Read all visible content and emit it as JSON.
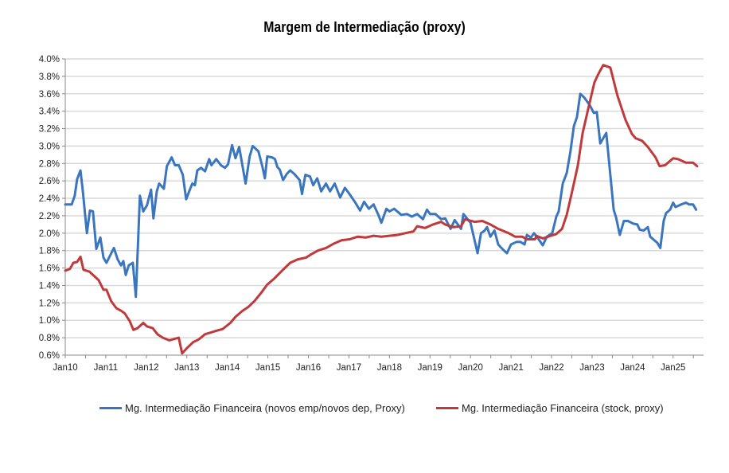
{
  "chart_data": {
    "type": "line",
    "title": "Margem de Intermediação (proxy)",
    "xlabel": "",
    "ylabel": "",
    "x_unit": "months since Jan10",
    "xlim": [
      0,
      189
    ],
    "ylim": [
      0.6,
      4.0
    ],
    "grid": true,
    "legend_position": "bottom",
    "x_ticks": [
      {
        "x": 0,
        "label": "Jan10"
      },
      {
        "x": 12,
        "label": "Jan11"
      },
      {
        "x": 24,
        "label": "Jan12"
      },
      {
        "x": 36,
        "label": "Jan13"
      },
      {
        "x": 48,
        "label": "Jan14"
      },
      {
        "x": 60,
        "label": "Jan15"
      },
      {
        "x": 72,
        "label": "Jan16"
      },
      {
        "x": 84,
        "label": "Jan17"
      },
      {
        "x": 96,
        "label": "Jan18"
      },
      {
        "x": 108,
        "label": "Jan19"
      },
      {
        "x": 120,
        "label": "Jan20"
      },
      {
        "x": 132,
        "label": "Jan21"
      },
      {
        "x": 144,
        "label": "Jan22"
      },
      {
        "x": 156,
        "label": "Jan23"
      },
      {
        "x": 168,
        "label": "Jan24"
      },
      {
        "x": 180,
        "label": "Jan25"
      }
    ],
    "y_ticks": [
      {
        "y": 4.0,
        "label": "4.0%"
      },
      {
        "y": 3.8,
        "label": "3.8%"
      },
      {
        "y": 3.6,
        "label": "3.6%"
      },
      {
        "y": 3.4,
        "label": "3.4%"
      },
      {
        "y": 3.2,
        "label": "3.2%"
      },
      {
        "y": 3.0,
        "label": "3.0%"
      },
      {
        "y": 2.8,
        "label": "2.8%"
      },
      {
        "y": 2.6,
        "label": "2.6%"
      },
      {
        "y": 2.4,
        "label": "2.4%"
      },
      {
        "y": 2.2,
        "label": "2.2%"
      },
      {
        "y": 2.0,
        "label": "2.0%"
      },
      {
        "y": 1.8,
        "label": "1.8%"
      },
      {
        "y": 1.6,
        "label": "1.6%"
      },
      {
        "y": 1.4,
        "label": "1.4%"
      },
      {
        "y": 1.2,
        "label": "1.2%"
      },
      {
        "y": 1.0,
        "label": "1.0%"
      },
      {
        "y": 0.8,
        "label": "0.8%"
      },
      {
        "y": 0.6,
        "label": "0.6%"
      }
    ],
    "series": [
      {
        "name": "Mg. Intermediação Financeira (novos emp/novos dep, Proxy)",
        "color": "#3a75bf",
        "points": [
          [
            0,
            2.33
          ],
          [
            1.9,
            2.33
          ],
          [
            2.8,
            2.43
          ],
          [
            3.5,
            2.62
          ],
          [
            4.5,
            2.72
          ],
          [
            5.2,
            2.48
          ],
          [
            6.4,
            2.0
          ],
          [
            7.3,
            2.26
          ],
          [
            8.2,
            2.25
          ],
          [
            9.2,
            1.82
          ],
          [
            10.4,
            1.95
          ],
          [
            11.3,
            1.72
          ],
          [
            12.2,
            1.66
          ],
          [
            14.4,
            1.83
          ],
          [
            15.5,
            1.7
          ],
          [
            16.5,
            1.63
          ],
          [
            17.2,
            1.68
          ],
          [
            17.9,
            1.52
          ],
          [
            18.8,
            1.63
          ],
          [
            20,
            1.66
          ],
          [
            20.9,
            1.27
          ],
          [
            22.1,
            2.43
          ],
          [
            23.1,
            2.25
          ],
          [
            24.2,
            2.32
          ],
          [
            25.4,
            2.5
          ],
          [
            26.1,
            2.17
          ],
          [
            27.1,
            2.48
          ],
          [
            27.8,
            2.57
          ],
          [
            29.2,
            2.51
          ],
          [
            30.1,
            2.77
          ],
          [
            31.5,
            2.87
          ],
          [
            32.5,
            2.78
          ],
          [
            33.6,
            2.78
          ],
          [
            34.8,
            2.67
          ],
          [
            35.8,
            2.39
          ],
          [
            36.7,
            2.48
          ],
          [
            37.6,
            2.57
          ],
          [
            38.4,
            2.55
          ],
          [
            39.1,
            2.72
          ],
          [
            40.2,
            2.75
          ],
          [
            41.4,
            2.71
          ],
          [
            42.6,
            2.85
          ],
          [
            43.3,
            2.78
          ],
          [
            44.7,
            2.85
          ],
          [
            46.1,
            2.78
          ],
          [
            47.3,
            2.75
          ],
          [
            48.2,
            2.79
          ],
          [
            49.4,
            3.01
          ],
          [
            50.4,
            2.86
          ],
          [
            51.5,
            2.99
          ],
          [
            53.4,
            2.57
          ],
          [
            54.6,
            2.88
          ],
          [
            55.5,
            3.0
          ],
          [
            57.2,
            2.94
          ],
          [
            58.4,
            2.76
          ],
          [
            59.1,
            2.63
          ],
          [
            59.8,
            2.88
          ],
          [
            61.2,
            2.87
          ],
          [
            62.1,
            2.85
          ],
          [
            62.8,
            2.76
          ],
          [
            63.5,
            2.73
          ],
          [
            64.5,
            2.61
          ],
          [
            65.6,
            2.68
          ],
          [
            66.6,
            2.72
          ],
          [
            67.8,
            2.68
          ],
          [
            69.4,
            2.61
          ],
          [
            70.1,
            2.45
          ],
          [
            71.1,
            2.67
          ],
          [
            72.5,
            2.65
          ],
          [
            73.4,
            2.55
          ],
          [
            74.6,
            2.63
          ],
          [
            75.8,
            2.48
          ],
          [
            77.2,
            2.57
          ],
          [
            78.4,
            2.48
          ],
          [
            79.8,
            2.57
          ],
          [
            81.4,
            2.41
          ],
          [
            82.8,
            2.52
          ],
          [
            84.5,
            2.43
          ],
          [
            85.9,
            2.35
          ],
          [
            87.3,
            2.26
          ],
          [
            88.5,
            2.36
          ],
          [
            89.9,
            2.28
          ],
          [
            91.3,
            2.33
          ],
          [
            92.7,
            2.21
          ],
          [
            93.6,
            2.12
          ],
          [
            95.1,
            2.28
          ],
          [
            96,
            2.25
          ],
          [
            97.4,
            2.28
          ],
          [
            99.5,
            2.21
          ],
          [
            101.2,
            2.22
          ],
          [
            102.6,
            2.19
          ],
          [
            104.2,
            2.22
          ],
          [
            105.9,
            2.16
          ],
          [
            107.1,
            2.27
          ],
          [
            108,
            2.22
          ],
          [
            109.6,
            2.22
          ],
          [
            111.3,
            2.16
          ],
          [
            112.5,
            2.17
          ],
          [
            114.1,
            2.05
          ],
          [
            115.3,
            2.15
          ],
          [
            117.2,
            2.05
          ],
          [
            117.9,
            2.22
          ],
          [
            120,
            2.12
          ],
          [
            122.1,
            1.77
          ],
          [
            123.1,
            2.0
          ],
          [
            124.2,
            2.03
          ],
          [
            124.9,
            2.07
          ],
          [
            125.9,
            1.96
          ],
          [
            127.1,
            2.03
          ],
          [
            128.2,
            1.87
          ],
          [
            129.4,
            1.82
          ],
          [
            130.8,
            1.77
          ],
          [
            132,
            1.87
          ],
          [
            133.6,
            1.9
          ],
          [
            134.8,
            1.9
          ],
          [
            136,
            1.87
          ],
          [
            136.7,
            1.98
          ],
          [
            137.9,
            1.95
          ],
          [
            138.8,
            2.0
          ],
          [
            140,
            1.94
          ],
          [
            141.4,
            1.86
          ],
          [
            142.6,
            1.96
          ],
          [
            144.2,
            2.0
          ],
          [
            145.4,
            2.19
          ],
          [
            146.1,
            2.25
          ],
          [
            147.3,
            2.57
          ],
          [
            148.5,
            2.69
          ],
          [
            149.6,
            2.94
          ],
          [
            150.6,
            3.23
          ],
          [
            151.5,
            3.33
          ],
          [
            152.5,
            3.6
          ],
          [
            153.6,
            3.56
          ],
          [
            155.3,
            3.47
          ],
          [
            156.5,
            3.38
          ],
          [
            157.4,
            3.39
          ],
          [
            158.4,
            3.03
          ],
          [
            160.2,
            3.15
          ],
          [
            162.4,
            2.27
          ],
          [
            163.1,
            2.18
          ],
          [
            164.2,
            1.98
          ],
          [
            165.4,
            2.14
          ],
          [
            166.6,
            2.14
          ],
          [
            168.2,
            2.11
          ],
          [
            169.4,
            2.1
          ],
          [
            170.1,
            2.04
          ],
          [
            171.3,
            2.03
          ],
          [
            172.5,
            2.07
          ],
          [
            173.2,
            1.96
          ],
          [
            174.4,
            1.92
          ],
          [
            175.3,
            1.89
          ],
          [
            176.2,
            1.83
          ],
          [
            177.2,
            2.14
          ],
          [
            177.9,
            2.23
          ],
          [
            179.1,
            2.27
          ],
          [
            180,
            2.35
          ],
          [
            180.7,
            2.3
          ],
          [
            182.4,
            2.33
          ],
          [
            183.8,
            2.35
          ],
          [
            184.7,
            2.33
          ],
          [
            185.9,
            2.33
          ],
          [
            186.8,
            2.27
          ]
        ]
      },
      {
        "name": "Mg. Intermediação Financeira (stock, proxy)",
        "color": "#c0393b",
        "points": [
          [
            0,
            1.57
          ],
          [
            1.4,
            1.59
          ],
          [
            2.4,
            1.66
          ],
          [
            3.5,
            1.67
          ],
          [
            4.5,
            1.73
          ],
          [
            5.4,
            1.58
          ],
          [
            7.1,
            1.56
          ],
          [
            8.5,
            1.51
          ],
          [
            9.9,
            1.46
          ],
          [
            11.3,
            1.35
          ],
          [
            12.2,
            1.35
          ],
          [
            13.6,
            1.22
          ],
          [
            15.1,
            1.14
          ],
          [
            16.5,
            1.11
          ],
          [
            17.6,
            1.08
          ],
          [
            19.1,
            0.99
          ],
          [
            20.2,
            0.89
          ],
          [
            21.4,
            0.91
          ],
          [
            23.1,
            0.97
          ],
          [
            24.2,
            0.93
          ],
          [
            25.9,
            0.91
          ],
          [
            27.3,
            0.84
          ],
          [
            28.9,
            0.8
          ],
          [
            30.8,
            0.77
          ],
          [
            33.6,
            0.8
          ],
          [
            34.6,
            0.62
          ],
          [
            36,
            0.68
          ],
          [
            37.9,
            0.75
          ],
          [
            39.5,
            0.78
          ],
          [
            41.4,
            0.84
          ],
          [
            43.1,
            0.86
          ],
          [
            44.7,
            0.88
          ],
          [
            46.6,
            0.9
          ],
          [
            48.9,
            0.97
          ],
          [
            50.4,
            1.04
          ],
          [
            52.5,
            1.11
          ],
          [
            54.1,
            1.15
          ],
          [
            56,
            1.22
          ],
          [
            57.9,
            1.31
          ],
          [
            59.8,
            1.41
          ],
          [
            61.9,
            1.48
          ],
          [
            64.2,
            1.57
          ],
          [
            66.6,
            1.66
          ],
          [
            68.9,
            1.7
          ],
          [
            71.3,
            1.72
          ],
          [
            72.5,
            1.75
          ],
          [
            74.8,
            1.8
          ],
          [
            77.2,
            1.83
          ],
          [
            79.5,
            1.88
          ],
          [
            81.9,
            1.92
          ],
          [
            84.2,
            1.93
          ],
          [
            86.6,
            1.96
          ],
          [
            88.9,
            1.95
          ],
          [
            91.3,
            1.97
          ],
          [
            93.6,
            1.96
          ],
          [
            96,
            1.97
          ],
          [
            98.4,
            1.98
          ],
          [
            100.7,
            2.0
          ],
          [
            103.1,
            2.02
          ],
          [
            104.2,
            2.08
          ],
          [
            106.6,
            2.06
          ],
          [
            108.9,
            2.1
          ],
          [
            111.3,
            2.13
          ],
          [
            112.5,
            2.1
          ],
          [
            114.8,
            2.07
          ],
          [
            117.2,
            2.08
          ],
          [
            118.4,
            2.16
          ],
          [
            121.2,
            2.13
          ],
          [
            123.5,
            2.14
          ],
          [
            125.9,
            2.1
          ],
          [
            128.2,
            2.05
          ],
          [
            131.3,
            2.0
          ],
          [
            133.2,
            1.96
          ],
          [
            135.3,
            1.96
          ],
          [
            136.7,
            1.93
          ],
          [
            139.1,
            1.93
          ],
          [
            139.5,
            1.97
          ],
          [
            141.4,
            1.94
          ],
          [
            143.8,
            1.97
          ],
          [
            145.4,
            1.99
          ],
          [
            147.1,
            2.05
          ],
          [
            148.5,
            2.21
          ],
          [
            150.1,
            2.48
          ],
          [
            151.8,
            2.78
          ],
          [
            153.2,
            3.15
          ],
          [
            154.8,
            3.42
          ],
          [
            156.7,
            3.73
          ],
          [
            157.9,
            3.83
          ],
          [
            159.3,
            3.93
          ],
          [
            161.4,
            3.9
          ],
          [
            163.5,
            3.58
          ],
          [
            165.9,
            3.3
          ],
          [
            167.8,
            3.14
          ],
          [
            168.9,
            3.09
          ],
          [
            170.8,
            3.06
          ],
          [
            172.5,
            2.99
          ],
          [
            174.8,
            2.87
          ],
          [
            176,
            2.77
          ],
          [
            177.6,
            2.78
          ],
          [
            180,
            2.86
          ],
          [
            181.4,
            2.85
          ],
          [
            183.8,
            2.81
          ],
          [
            185.9,
            2.81
          ],
          [
            187.1,
            2.77
          ]
        ]
      }
    ]
  }
}
